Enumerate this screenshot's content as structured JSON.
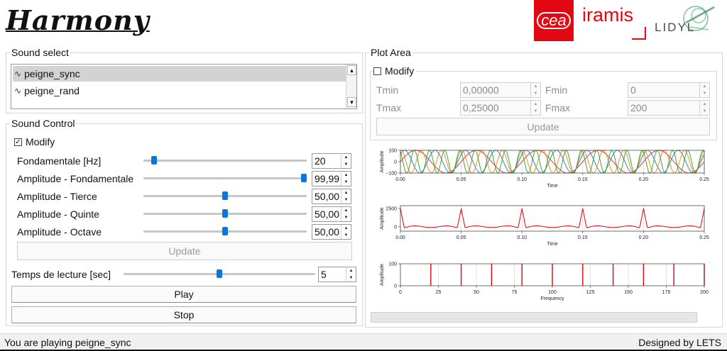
{
  "app": {
    "title": "Harmony"
  },
  "logos": {
    "cea": "cea",
    "iramis": "iramis",
    "lidyl": "LIDYL"
  },
  "sound_select": {
    "title": "Sound select",
    "items": [
      {
        "label": "peigne_sync",
        "icon": "waveform-icon",
        "selected": true
      },
      {
        "label": "peigne_rand",
        "icon": "waveform-icon",
        "selected": false
      }
    ]
  },
  "sound_control": {
    "title": "Sound Control",
    "modify_label": "Modify",
    "modify_checked": true,
    "sliders": [
      {
        "label": "Fondamentale [Hz]",
        "value": "20",
        "level": 0.05
      },
      {
        "label": "Amplitude - Fondamentale",
        "value": "99,99",
        "level": 1.0
      },
      {
        "label": "Amplitude - Tierce",
        "value": "50,00",
        "level": 0.5
      },
      {
        "label": "Amplitude - Quinte",
        "value": "50,00",
        "level": 0.5
      },
      {
        "label": "Amplitude - Octave",
        "value": "50,00",
        "level": 0.5
      }
    ],
    "update_label": "Update",
    "reading_time": {
      "label": "Temps de lecture [sec]",
      "value": "5",
      "level": 0.5
    },
    "play_label": "Play",
    "stop_label": "Stop"
  },
  "plot_area": {
    "title": "Plot Area",
    "modify_label": "Modify",
    "modify_checked": false,
    "tmin_label": "Tmin",
    "tmin_value": "0,00000",
    "tmax_label": "Tmax",
    "tmax_value": "0,25000",
    "fmin_label": "Fmin",
    "fmin_value": "0",
    "fmax_label": "Fmax",
    "fmax_value": "200",
    "update_label": "Update"
  },
  "chart_data": [
    {
      "type": "line",
      "ylabel": "Amplitude",
      "xlabel": "Time",
      "xlim": [
        0,
        0.25
      ],
      "ylim": [
        -100,
        100
      ],
      "xticks": [
        "0.00",
        "0.05",
        "0.10",
        "0.15",
        "0.20",
        "0.25"
      ],
      "yticks": [
        "100",
        "0",
        "−100"
      ],
      "series_colors": [
        "#d62728",
        "#1f77b4",
        "#ff7f0e",
        "#2ca02c"
      ],
      "frequencies_hz": [
        20,
        40,
        60,
        80
      ],
      "amplitude": 100
    },
    {
      "type": "line",
      "ylabel": "Amplitude",
      "xlabel": "Time",
      "xlim": [
        0,
        0.25
      ],
      "ylim": [
        -600,
        2900
      ],
      "xticks": [
        "0.00",
        "0.05",
        "0.10",
        "0.15",
        "0.20",
        "0.25"
      ],
      "yticks": [
        "2500",
        "0"
      ],
      "color": "#e8000b",
      "peak_times": [
        0,
        0.05,
        0.1,
        0.15,
        0.2,
        0.25
      ],
      "peak_value": 2500
    },
    {
      "type": "bar",
      "ylabel": "Amplitude",
      "xlabel": "Frequency",
      "xlim": [
        0,
        200
      ],
      "ylim": [
        0,
        100
      ],
      "xticks": [
        "0",
        "25",
        "50",
        "75",
        "100",
        "125",
        "150",
        "175",
        "200"
      ],
      "yticks": [
        "100",
        "0"
      ],
      "color": "#e8000b",
      "x": [
        20,
        40,
        60,
        80,
        100,
        120,
        140,
        160,
        180,
        200
      ],
      "values": [
        100,
        100,
        100,
        100,
        100,
        100,
        100,
        100,
        100,
        100
      ]
    }
  ],
  "status": {
    "left": "You are playing peigne_sync",
    "right": "Designed by LETS"
  }
}
